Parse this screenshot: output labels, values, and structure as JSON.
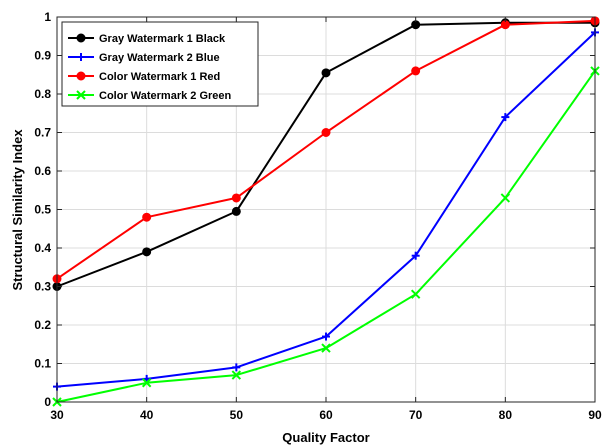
{
  "chart_data": {
    "type": "line",
    "xlabel": "Quality Factor",
    "ylabel": "Structural Similarity Index",
    "xlim": [
      30,
      90
    ],
    "ylim": [
      0,
      1
    ],
    "xticks": [
      "30",
      "40",
      "50",
      "60",
      "70",
      "80",
      "90"
    ],
    "yticks": [
      "0",
      "0.1",
      "0.2",
      "0.3",
      "0.4",
      "0.5",
      "0.6",
      "0.7",
      "0.8",
      "0.9",
      "1"
    ],
    "grid": true,
    "legend_position": "top-left",
    "x": [
      30,
      40,
      50,
      60,
      70,
      80,
      90
    ],
    "series": [
      {
        "name": "Gray Watermark 1 Black",
        "color": "#000000",
        "marker": "circle",
        "values": [
          0.3,
          0.39,
          0.495,
          0.855,
          0.98,
          0.985,
          0.985
        ]
      },
      {
        "name": "Gray Watermark 2 Blue",
        "color": "#0000ff",
        "marker": "plus",
        "values": [
          0.04,
          0.06,
          0.09,
          0.17,
          0.38,
          0.74,
          0.96
        ]
      },
      {
        "name": "Color Watermark 1 Red",
        "color": "#ff0000",
        "marker": "circle",
        "values": [
          0.32,
          0.48,
          0.53,
          0.7,
          0.86,
          0.98,
          0.99
        ]
      },
      {
        "name": "Color Watermark 2 Green",
        "color": "#00ff00",
        "marker": "x",
        "values": [
          0.0,
          0.05,
          0.07,
          0.14,
          0.28,
          0.53,
          0.86
        ]
      }
    ]
  }
}
